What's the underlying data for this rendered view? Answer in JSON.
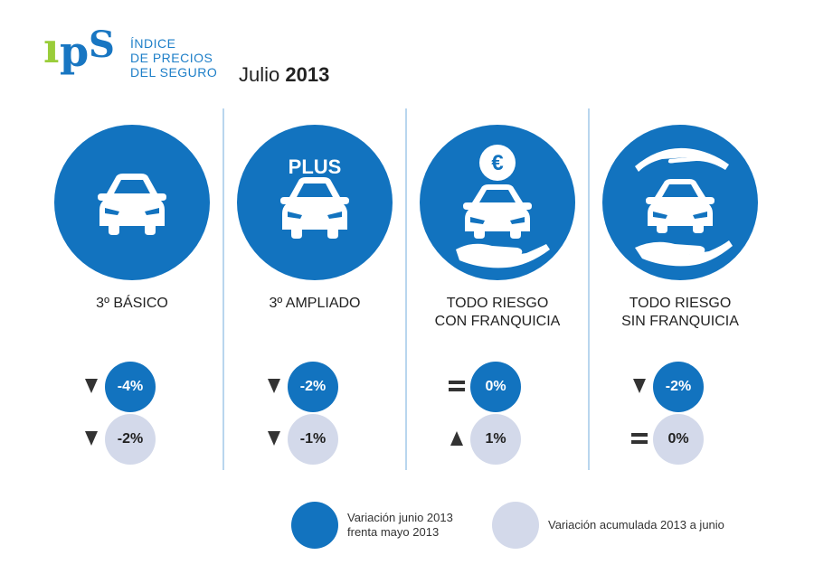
{
  "header": {
    "logo_letters": "IPS",
    "logo_lines": [
      "ÍNDICE",
      "DE PRECIOS",
      "DEL SEGURO"
    ],
    "month": "Julio",
    "year": "2013"
  },
  "colors": {
    "primary": "#1273bf",
    "light": "#d3d9ea",
    "logo_green": "#9acd3a",
    "divider": "#b9d6ee"
  },
  "columns": [
    {
      "icon": "car-icon",
      "badge": "",
      "label": [
        "3º BÁSICO"
      ],
      "monthly": {
        "symbol": "down",
        "value": "-4%"
      },
      "accumulated": {
        "symbol": "down",
        "value": "-2%"
      }
    },
    {
      "icon": "car-plus-icon",
      "badge": "PLUS",
      "label": [
        "3º AMPLIADO"
      ],
      "monthly": {
        "symbol": "down",
        "value": "-2%"
      },
      "accumulated": {
        "symbol": "down",
        "value": "-1%"
      }
    },
    {
      "icon": "car-euro-hand-icon",
      "badge": "",
      "label": [
        "TODO RIESGO",
        "CON FRANQUICIA"
      ],
      "monthly": {
        "symbol": "equal",
        "value": "0%"
      },
      "accumulated": {
        "symbol": "up",
        "value": "1%"
      }
    },
    {
      "icon": "car-two-hands-icon",
      "badge": "",
      "label": [
        "TODO RIESGO",
        "SIN FRANQUICIA"
      ],
      "monthly": {
        "symbol": "down",
        "value": "-2%"
      },
      "accumulated": {
        "symbol": "equal",
        "value": "0%"
      }
    }
  ],
  "legend": {
    "monthly_line1": "Variación junio 2013",
    "monthly_line2": "frenta mayo 2013",
    "accumulated": "Variación acumulada 2013 a junio"
  }
}
